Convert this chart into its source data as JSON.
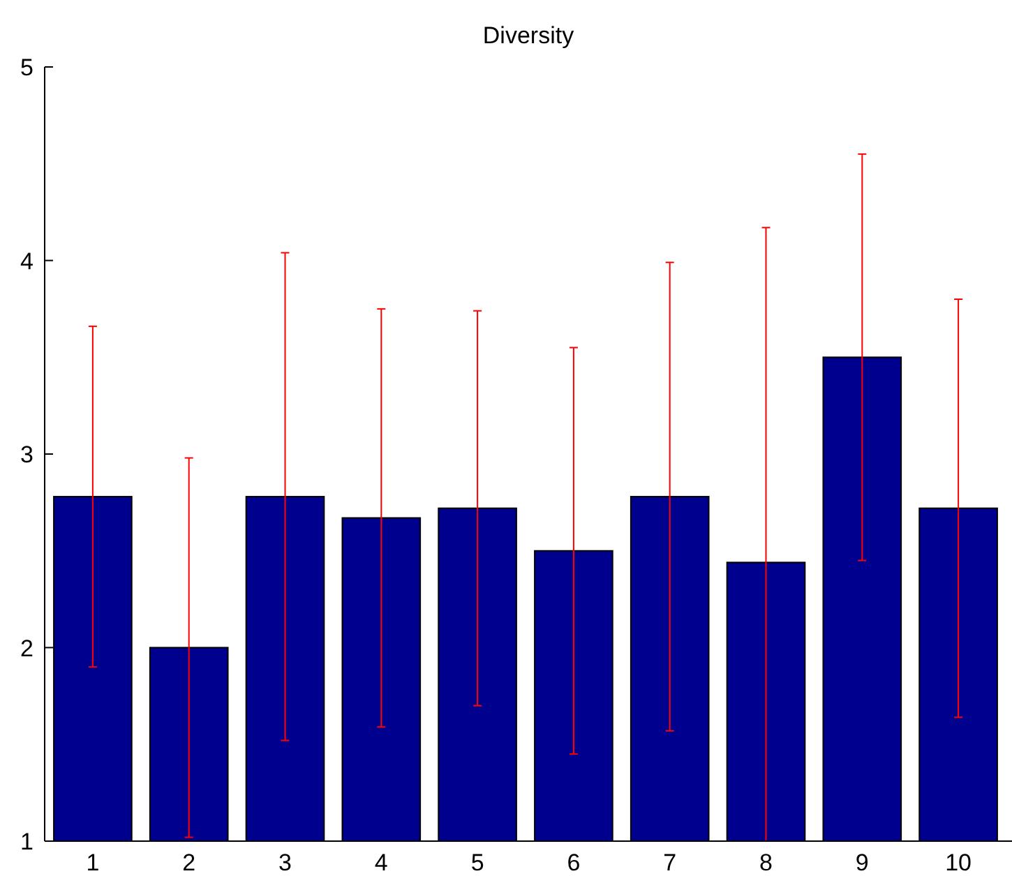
{
  "chart_data": {
    "type": "bar",
    "title": "Diversity",
    "categories": [
      "1",
      "2",
      "3",
      "4",
      "5",
      "6",
      "7",
      "8",
      "9",
      "10"
    ],
    "values": [
      2.78,
      2.0,
      2.78,
      2.67,
      2.72,
      2.5,
      2.78,
      2.44,
      3.5,
      2.72
    ],
    "errors": [
      0.88,
      0.98,
      1.26,
      1.08,
      1.02,
      1.05,
      1.21,
      [
        1,
        4.17
      ],
      1.05,
      1.08
    ],
    "color": "#00008f",
    "ylim": [
      1,
      5
    ],
    "yticks": [
      1,
      2,
      3,
      4,
      5
    ],
    "grid": false
  }
}
